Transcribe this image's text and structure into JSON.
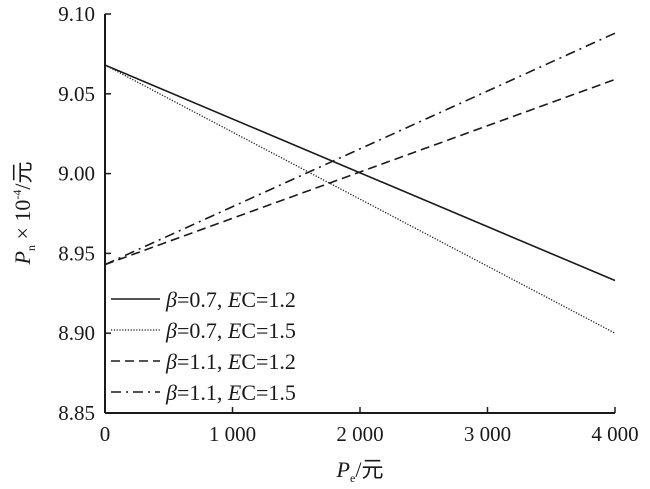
{
  "chart_data": {
    "type": "line",
    "xlabel": "P_e/元",
    "xlabel_main": "P",
    "xlabel_sub": "e",
    "xlabel_unit": "/元",
    "ylabel_main": "P",
    "ylabel_sub": "n",
    "ylabel_mult": " × 10",
    "ylabel_exp": "-4",
    "ylabel_unit": "/元",
    "xlim": [
      0,
      4000
    ],
    "ylim": [
      8.85,
      9.1
    ],
    "xticks": [
      0,
      1000,
      2000,
      3000,
      4000
    ],
    "xtick_labels": [
      "0",
      "1 000",
      "2 000",
      "3 000",
      "4 000"
    ],
    "yticks": [
      8.85,
      8.9,
      8.95,
      9.0,
      9.05,
      9.1
    ],
    "ytick_labels": [
      "8.85",
      "8.90",
      "8.95",
      "9.00",
      "9.05",
      "9.10"
    ],
    "grid": false,
    "legend_position": "bottom-left",
    "series": [
      {
        "name": "β=0.7, EC=1.2",
        "beta": "β",
        "beta_val": "=0.7, ",
        "ec": "E",
        "ec_rest": "C=1.2",
        "style": "solid",
        "x": [
          0,
          4000
        ],
        "y": [
          9.068,
          8.933
        ]
      },
      {
        "name": "β=0.7, EC=1.5",
        "beta": "β",
        "beta_val": "=0.7, ",
        "ec": "E",
        "ec_rest": "C=1.5",
        "style": "dotted",
        "x": [
          0,
          4000
        ],
        "y": [
          9.068,
          8.9
        ]
      },
      {
        "name": "β=1.1, EC=1.2",
        "beta": "β",
        "beta_val": "=1.1, ",
        "ec": "E",
        "ec_rest": "C=1.2",
        "style": "dashed",
        "x": [
          0,
          4000
        ],
        "y": [
          8.943,
          9.059
        ]
      },
      {
        "name": "β=1.1, EC=1.5",
        "beta": "β",
        "beta_val": "=1.1, ",
        "ec": "E",
        "ec_rest": "C=1.5",
        "style": "dashdot",
        "x": [
          0,
          4000
        ],
        "y": [
          8.943,
          9.088
        ]
      }
    ],
    "line_color": "#1a1a1a"
  }
}
